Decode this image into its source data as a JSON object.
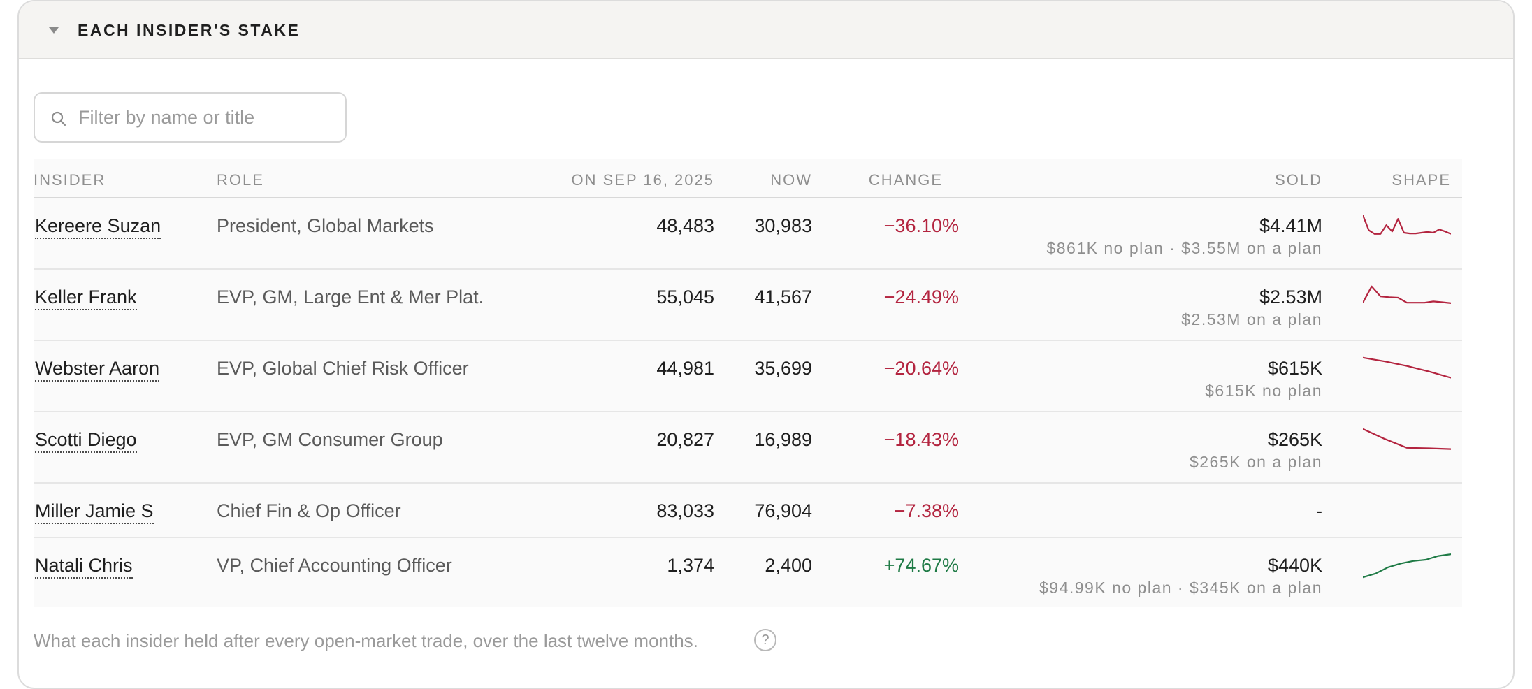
{
  "panel": {
    "title": "EACH INSIDER'S STAKE"
  },
  "search": {
    "placeholder": "Filter by name or title",
    "value": ""
  },
  "table": {
    "columns": {
      "insider": "INSIDER",
      "role": "ROLE",
      "on_date": "ON SEP 16, 2025",
      "now": "NOW",
      "change": "CHANGE",
      "sold": "SOLD",
      "shape": "SHAPE"
    },
    "rows": [
      {
        "name": "Kereere Suzan",
        "role": "President, Global Markets",
        "on_date": "48,483",
        "now": "30,983",
        "change": "−36.10%",
        "direction": "down",
        "sold": "$4.41M",
        "sold_detail": "$861K no plan · $3.55M on a plan",
        "shape": [
          0.95,
          0.35,
          0.2,
          0.2,
          0.55,
          0.3,
          0.8,
          0.25,
          0.22,
          0.22,
          0.25,
          0.28,
          0.25,
          0.38,
          0.3,
          0.2
        ]
      },
      {
        "name": "Keller Frank",
        "role": "EVP, GM, Large Ent & Mer Plat.",
        "on_date": "55,045",
        "now": "41,567",
        "change": "−24.49%",
        "direction": "down",
        "sold": "$2.53M",
        "sold_detail": "$2.53M on a plan",
        "shape": [
          0.3,
          0.95,
          0.55,
          0.52,
          0.5,
          0.3,
          0.3,
          0.3,
          0.35,
          0.32,
          0.28
        ]
      },
      {
        "name": "Webster Aaron",
        "role": "EVP, Global Chief Risk Officer",
        "on_date": "44,981",
        "now": "35,699",
        "change": "−20.64%",
        "direction": "down",
        "sold": "$615K",
        "sold_detail": "$615K no plan",
        "shape": [
          0.95,
          0.8,
          0.62,
          0.4,
          0.15
        ]
      },
      {
        "name": "Scotti Diego",
        "role": "EVP, GM Consumer Group",
        "on_date": "20,827",
        "now": "16,989",
        "change": "−18.43%",
        "direction": "down",
        "sold": "$265K",
        "sold_detail": "$265K on a plan",
        "shape": [
          0.95,
          0.55,
          0.2,
          0.18,
          0.15
        ]
      },
      {
        "name": "Miller Jamie S",
        "role": "Chief Fin & Op Officer",
        "on_date": "83,033",
        "now": "76,904",
        "change": "−7.38%",
        "direction": "down",
        "sold": "-",
        "sold_detail": "",
        "shape": []
      },
      {
        "name": "Natali Chris",
        "role": "VP, Chief Accounting Officer",
        "on_date": "1,374",
        "now": "2,400",
        "change": "+74.67%",
        "direction": "up",
        "sold": "$440K",
        "sold_detail": "$94.99K no plan · $345K on a plan",
        "shape": [
          0.05,
          0.2,
          0.45,
          0.6,
          0.7,
          0.75,
          0.9,
          0.97
        ]
      }
    ]
  },
  "colors": {
    "negative": "#b3243f",
    "positive": "#1e7a45"
  },
  "footnote": "What each insider held after every open-market trade, over the last twelve months.",
  "help_glyph": "?"
}
